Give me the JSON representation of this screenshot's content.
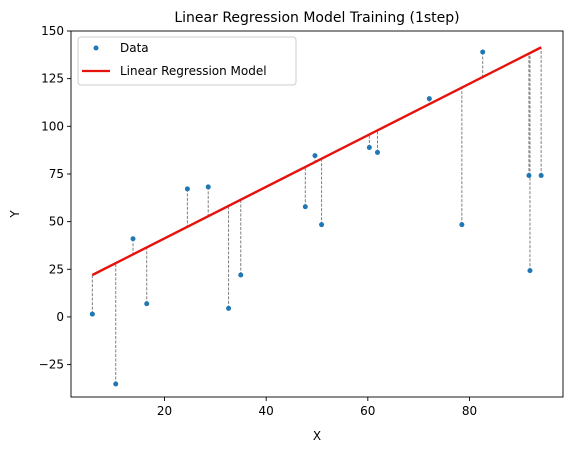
{
  "chart_data": {
    "type": "scatter",
    "title": "Linear Regression Model Training (1step)",
    "xlabel": "X",
    "ylabel": "Y",
    "xlim": [
      1.6,
      98.4
    ],
    "ylim": [
      -42,
      150
    ],
    "xticks": [
      20,
      40,
      60,
      80
    ],
    "yticks": [
      -25,
      0,
      25,
      50,
      75,
      100,
      125,
      150
    ],
    "grid": false,
    "legend_position": "top-left",
    "series": [
      {
        "name": "Data",
        "kind": "scatter",
        "color": "#1f77b4",
        "points": [
          {
            "x": 5.8,
            "y": 1.5
          },
          {
            "x": 10.4,
            "y": -35.2
          },
          {
            "x": 13.8,
            "y": 41.0
          },
          {
            "x": 16.5,
            "y": 6.9
          },
          {
            "x": 24.5,
            "y": 67.2
          },
          {
            "x": 28.6,
            "y": 68.2
          },
          {
            "x": 32.6,
            "y": 4.5
          },
          {
            "x": 35.0,
            "y": 22.0
          },
          {
            "x": 47.7,
            "y": 57.8
          },
          {
            "x": 49.6,
            "y": 84.6
          },
          {
            "x": 50.9,
            "y": 48.4
          },
          {
            "x": 60.3,
            "y": 88.9
          },
          {
            "x": 61.9,
            "y": 86.3
          },
          {
            "x": 72.1,
            "y": 114.5
          },
          {
            "x": 78.5,
            "y": 48.4
          },
          {
            "x": 82.6,
            "y": 139.0
          },
          {
            "x": 91.7,
            "y": 74.2
          },
          {
            "x": 91.9,
            "y": 24.3
          },
          {
            "x": 94.1,
            "y": 74.2
          }
        ]
      },
      {
        "name": "Linear Regression Model",
        "kind": "line",
        "color": "#e8120c",
        "slope": 1.3523,
        "intercept": 14.16,
        "x_range": [
          5.8,
          94.1
        ]
      }
    ],
    "residual_color": "#7f7f7f"
  }
}
